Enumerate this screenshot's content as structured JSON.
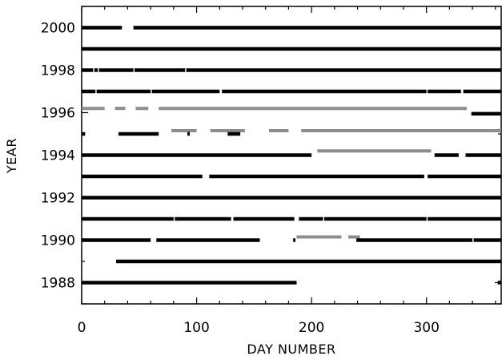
{
  "chart_data": {
    "type": "timeline",
    "xlabel": "DAY NUMBER",
    "ylabel": "YEAR",
    "xlim": [
      0,
      365
    ],
    "ylim": [
      1987,
      2001
    ],
    "x_ticks": [
      0,
      100,
      200,
      300
    ],
    "y_ticks": [
      1988,
      1990,
      1992,
      1994,
      1996,
      1998,
      2000
    ],
    "grid": false,
    "series": [
      {
        "color": "#000000",
        "style": "black"
      },
      {
        "color": "#8c8c8c",
        "style": "gray"
      }
    ],
    "rows": [
      {
        "year": 2000.0,
        "color": "#000000",
        "segments": [
          [
            1,
            35
          ],
          [
            46,
            365
          ]
        ]
      },
      {
        "year": 1999.0,
        "color": "#000000",
        "segments": [
          [
            1,
            365
          ]
        ]
      },
      {
        "year": 1998.0,
        "color": "#000000",
        "segments": [
          [
            1,
            10
          ],
          [
            12,
            14
          ],
          [
            16,
            45
          ],
          [
            47,
            90
          ],
          [
            92,
            365
          ]
        ]
      },
      {
        "year": 1997.0,
        "color": "#000000",
        "segments": [
          [
            1,
            12
          ],
          [
            14,
            60
          ],
          [
            62,
            120
          ],
          [
            123,
            300
          ],
          [
            302,
            330
          ],
          [
            333,
            365
          ]
        ]
      },
      {
        "year": 1996.2,
        "color": "#8c8c8c",
        "segments": [
          [
            1,
            20
          ],
          [
            30,
            38
          ],
          [
            48,
            58
          ],
          [
            68,
            335
          ]
        ]
      },
      {
        "year": 1995.95,
        "color": "#000000",
        "segments": [
          [
            340,
            365
          ]
        ]
      },
      {
        "year": 1995.15,
        "color": "#8c8c8c",
        "segments": [
          [
            79,
            100
          ],
          [
            113,
            142
          ],
          [
            164,
            180
          ],
          [
            192,
            365
          ]
        ]
      },
      {
        "year": 1995.0,
        "color": "#000000",
        "segments": [
          [
            1,
            3
          ],
          [
            33,
            67
          ],
          [
            93,
            94
          ],
          [
            128,
            138
          ]
        ]
      },
      {
        "year": 1994.2,
        "color": "#8c8c8c",
        "segments": [
          [
            206,
            304
          ]
        ]
      },
      {
        "year": 1994.0,
        "color": "#000000",
        "segments": [
          [
            1,
            200
          ],
          [
            308,
            328
          ],
          [
            335,
            365
          ]
        ]
      },
      {
        "year": 1993.0,
        "color": "#000000",
        "segments": [
          [
            1,
            105
          ],
          [
            112,
            298
          ],
          [
            302,
            365
          ]
        ]
      },
      {
        "year": 1992.0,
        "color": "#000000",
        "segments": [
          [
            1,
            365
          ]
        ]
      },
      {
        "year": 1991.0,
        "color": "#000000",
        "segments": [
          [
            1,
            80
          ],
          [
            82,
            130
          ],
          [
            133,
            185
          ],
          [
            190,
            210
          ],
          [
            212,
            300
          ],
          [
            302,
            365
          ]
        ]
      },
      {
        "year": 1990.15,
        "color": "#8c8c8c",
        "segments": [
          [
            188,
            226
          ],
          [
            233,
            242
          ]
        ]
      },
      {
        "year": 1990.0,
        "color": "#000000",
        "segments": [
          [
            1,
            60
          ],
          [
            66,
            155
          ],
          [
            185,
            186
          ],
          [
            240,
            340
          ],
          [
            342,
            365
          ]
        ]
      },
      {
        "year": 1989.0,
        "color": "#000000",
        "segments": [
          [
            31,
            365
          ]
        ]
      },
      {
        "year": 1988.0,
        "color": "#000000",
        "segments": [
          [
            1,
            187
          ],
          [
            363,
            365
          ]
        ]
      }
    ]
  }
}
